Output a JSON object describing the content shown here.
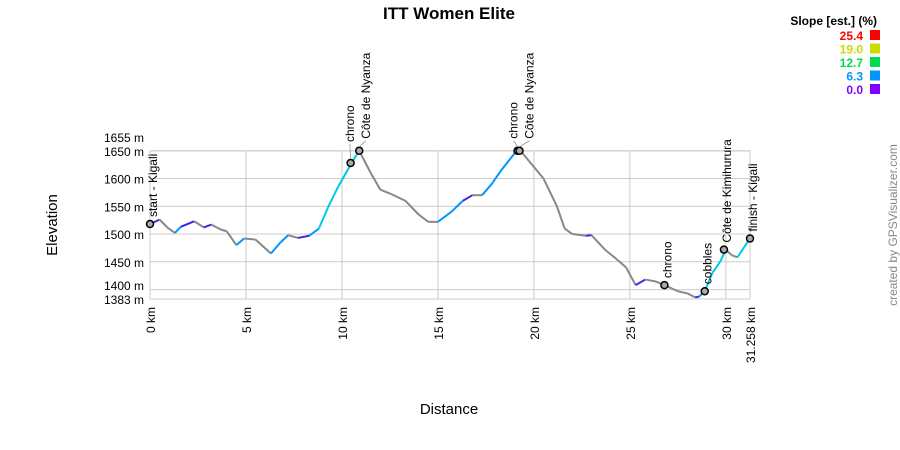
{
  "chart_data": {
    "type": "line",
    "title": "ITT Women Elite",
    "xlabel": "Distance",
    "ylabel": "Elevation",
    "xlim": [
      0,
      31.258
    ],
    "ylim": [
      1383,
      1655
    ],
    "grid": true,
    "x_ticks": [
      {
        "v": 0,
        "label": "0 km"
      },
      {
        "v": 5,
        "label": "5 km"
      },
      {
        "v": 10,
        "label": "10 km"
      },
      {
        "v": 15,
        "label": "15 km"
      },
      {
        "v": 20,
        "label": "20 km"
      },
      {
        "v": 25,
        "label": "25 km"
      },
      {
        "v": 30,
        "label": "30 km"
      },
      {
        "v": 31.258,
        "label": "31.258 km"
      }
    ],
    "y_ticks": [
      {
        "v": 1383,
        "label": "1383 m"
      },
      {
        "v": 1400,
        "label": "1400 m"
      },
      {
        "v": 1450,
        "label": "1450 m"
      },
      {
        "v": 1500,
        "label": "1500 m"
      },
      {
        "v": 1550,
        "label": "1550 m"
      },
      {
        "v": 1600,
        "label": "1600 m"
      },
      {
        "v": 1650,
        "label": "1650 m"
      },
      {
        "v": 1655,
        "label": "1655 m"
      }
    ],
    "profile": [
      [
        0,
        1518
      ],
      [
        0.5,
        1526
      ],
      [
        0.9,
        1512
      ],
      [
        1.3,
        1502
      ],
      [
        1.6,
        1513
      ],
      [
        2.3,
        1523
      ],
      [
        2.8,
        1512
      ],
      [
        3.2,
        1517
      ],
      [
        3.7,
        1508
      ],
      [
        4.0,
        1505
      ],
      [
        4.5,
        1480
      ],
      [
        4.9,
        1492
      ],
      [
        5.5,
        1490
      ],
      [
        6.3,
        1465
      ],
      [
        6.8,
        1485
      ],
      [
        7.2,
        1498
      ],
      [
        7.7,
        1493
      ],
      [
        8.3,
        1497
      ],
      [
        8.8,
        1510
      ],
      [
        9.3,
        1550
      ],
      [
        9.8,
        1585
      ],
      [
        10.5,
        1628
      ],
      [
        10.9,
        1650
      ],
      [
        11.5,
        1610
      ],
      [
        12.0,
        1580
      ],
      [
        12.5,
        1573
      ],
      [
        13.3,
        1560
      ],
      [
        14.0,
        1535
      ],
      [
        14.5,
        1522
      ],
      [
        15.0,
        1522
      ],
      [
        15.7,
        1540
      ],
      [
        16.3,
        1560
      ],
      [
        16.8,
        1570
      ],
      [
        17.3,
        1570
      ],
      [
        17.8,
        1590
      ],
      [
        18.3,
        1615
      ],
      [
        19.1,
        1650
      ],
      [
        19.3,
        1650
      ],
      [
        19.9,
        1625
      ],
      [
        20.5,
        1600
      ],
      [
        21.2,
        1550
      ],
      [
        21.6,
        1510
      ],
      [
        22.0,
        1500
      ],
      [
        22.7,
        1497
      ],
      [
        23.0,
        1498
      ],
      [
        23.7,
        1472
      ],
      [
        24.3,
        1455
      ],
      [
        24.8,
        1440
      ],
      [
        25.3,
        1408
      ],
      [
        25.8,
        1418
      ],
      [
        26.3,
        1415
      ],
      [
        26.8,
        1408
      ],
      [
        27.5,
        1397
      ],
      [
        28.0,
        1393
      ],
      [
        28.4,
        1386
      ],
      [
        28.6,
        1387
      ],
      [
        28.9,
        1397
      ],
      [
        29.3,
        1430
      ],
      [
        29.7,
        1450
      ],
      [
        30.0,
        1472
      ],
      [
        30.3,
        1462
      ],
      [
        30.6,
        1458
      ],
      [
        31.258,
        1492
      ]
    ],
    "waypoints": [
      {
        "km": 0,
        "ele": 1518,
        "label": "start - Kigali"
      },
      {
        "km": 10.45,
        "ele": 1628,
        "label": "chrono"
      },
      {
        "km": 10.9,
        "ele": 1650,
        "label": "Côte de Nyanza"
      },
      {
        "km": 19.15,
        "ele": 1650,
        "label": "chrono"
      },
      {
        "km": 19.25,
        "ele": 1650,
        "label": "Côte de Nyanza"
      },
      {
        "km": 26.8,
        "ele": 1408,
        "label": "chrono"
      },
      {
        "km": 28.9,
        "ele": 1397,
        "label": "cobbles"
      },
      {
        "km": 29.9,
        "ele": 1472,
        "label": "Côte de Kimihurura"
      },
      {
        "km": 31.258,
        "ele": 1492,
        "label": "finish - Kigali"
      }
    ],
    "legend": {
      "title": "Slope [est.] (%)",
      "placement": "top-right",
      "entries": [
        {
          "label": "25.4",
          "color": "#ff0000"
        },
        {
          "label": "19.0",
          "color": "#c8dc00"
        },
        {
          "label": "12.7",
          "color": "#00dc50"
        },
        {
          "label": "6.3",
          "color": "#0096ff"
        },
        {
          "label": "0.0",
          "color": "#8200ff"
        }
      ]
    }
  },
  "credit": "created by GPSVisualizer.com"
}
